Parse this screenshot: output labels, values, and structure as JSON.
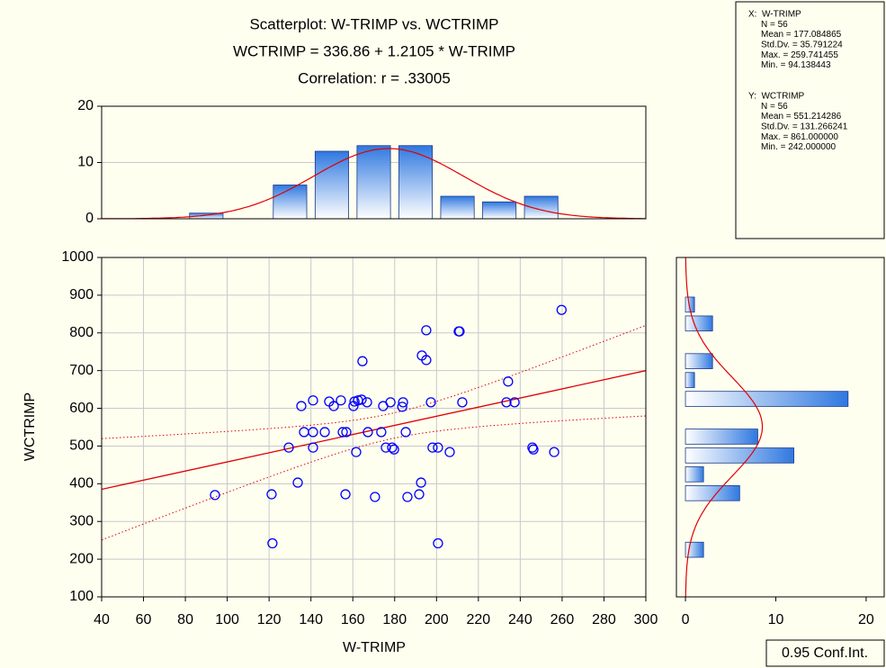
{
  "chart_data": [
    {
      "type": "scatter",
      "title": "Scatterplot: W-TRIMP vs. WCTRIMP",
      "equation": "WCTRIMP  = 336.86 + 1.2105 * W-TRIMP",
      "correlation": "Correlation: r = .33005",
      "x_label": "W-TRIMP",
      "y_label": "WCTRIMP",
      "color": "#0000ff",
      "x": [
        94.14,
        121.2,
        121.6,
        129.4,
        133.7,
        135.4,
        136.7,
        141.0,
        141.0,
        141.0,
        146.6,
        148.7,
        150.9,
        154.3,
        155.2,
        156.9,
        156.5,
        160.3,
        160.8,
        161.6,
        162.5,
        164.2,
        164.6,
        166.8,
        167.2,
        170.6,
        173.6,
        174.5,
        175.8,
        178.0,
        178.8,
        179.7,
        183.6,
        184.0,
        185.3,
        186.1,
        192.6,
        191.7,
        193.0,
        195.1,
        195.1,
        197.3,
        198.1,
        200.7,
        200.7,
        206.3,
        210.6,
        211.0,
        212.3,
        234.2,
        233.4,
        237.3,
        245.8,
        246.3,
        256.2,
        259.74
      ],
      "y": [
        370,
        372,
        242,
        496,
        403,
        606,
        537,
        621,
        537,
        496,
        537,
        618,
        606,
        621,
        537,
        537,
        372,
        606,
        618,
        484,
        621,
        623,
        725,
        616,
        537,
        365,
        537,
        606,
        496,
        616,
        496,
        491,
        604,
        616,
        537,
        365,
        403,
        372,
        740,
        807,
        728,
        616,
        496,
        496,
        242,
        484,
        804,
        804,
        616,
        671,
        616,
        616,
        496,
        491,
        484,
        861
      ],
      "regression": {
        "intercept": 336.86,
        "slope": 1.2105,
        "color": "#e00000"
      },
      "conf_label": "0.95 Conf.Int.",
      "xlim": [
        40,
        300
      ],
      "xticks": [
        40,
        60,
        80,
        100,
        120,
        140,
        160,
        180,
        200,
        220,
        240,
        260,
        280,
        300
      ],
      "ylim": [
        100,
        1000
      ],
      "yticks": [
        100,
        200,
        300,
        400,
        500,
        600,
        700,
        800,
        900,
        1000
      ],
      "grid": true
    },
    {
      "type": "histogram",
      "orientation": "vertical",
      "color": "#2f78e0",
      "bins": [
        80,
        100,
        120,
        140,
        160,
        180,
        200,
        220,
        240,
        260
      ],
      "counts": [
        1,
        0,
        6,
        12,
        13,
        13,
        4,
        3,
        4
      ],
      "fit": {
        "mean": 177.084865,
        "sd": 35.791224,
        "n": 56
      },
      "xlim": [
        40,
        300
      ],
      "ylim": [
        0,
        20
      ],
      "yticks": [
        0,
        10,
        20
      ],
      "grid": true
    },
    {
      "type": "histogram",
      "orientation": "horizontal",
      "color": "#2f78e0",
      "bins": [
        200,
        250,
        300,
        350,
        400,
        450,
        500,
        550,
        600,
        650,
        700,
        750,
        800,
        850,
        900
      ],
      "counts": [
        2,
        0,
        0,
        6,
        2,
        12,
        8,
        0,
        18,
        1,
        3,
        0,
        3,
        1
      ],
      "fit": {
        "mean": 551.214286,
        "sd": 131.266241,
        "n": 56
      },
      "ylim": [
        100,
        1000
      ],
      "xlim": [
        -1,
        22
      ],
      "xticks": [
        0,
        10,
        20
      ]
    }
  ],
  "stats_box": {
    "x_lines": [
      "X:  W-TRIMP",
      "N = 56",
      "Mean = 177.084865",
      "Std.Dv. = 35.791224",
      "Max. = 259.741455",
      "Min. = 94.138443"
    ],
    "y_lines": [
      "Y:  WCTRIMP",
      "N = 56",
      "Mean = 551.214286",
      "Std.Dv. = 131.266241",
      "Max. = 861.000000",
      "Min. = 242.000000"
    ]
  }
}
